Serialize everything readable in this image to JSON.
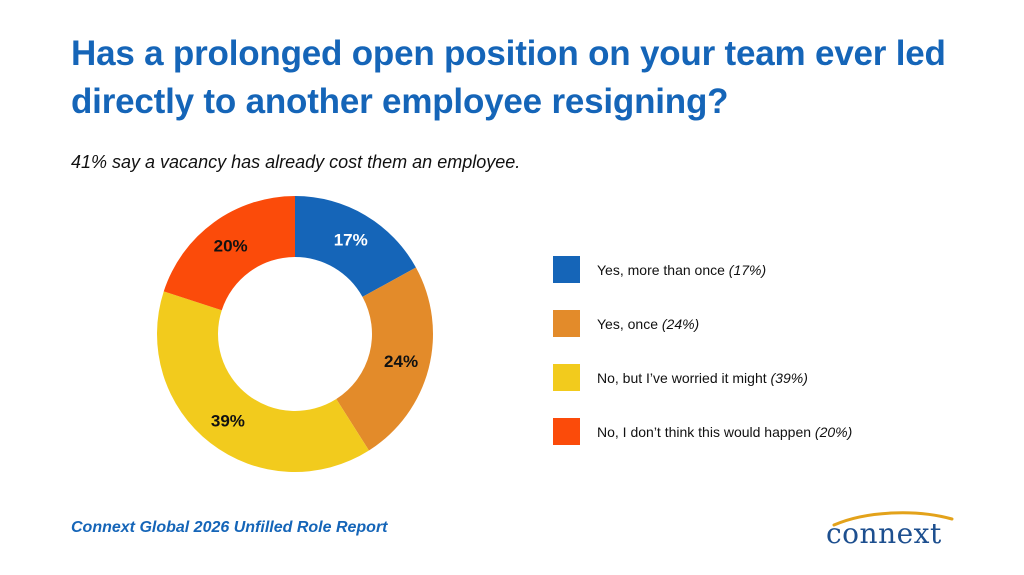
{
  "header": {
    "title": "Has a prolonged open position on your team ever led directly to another employee resigning?",
    "subtitle": "41% say a vacancy has already cost them an employee."
  },
  "chart_data": {
    "type": "pie",
    "donut": true,
    "slices": [
      {
        "name": "Yes, more than once",
        "value": 17,
        "label": "17%",
        "legend_pct": "(17%)",
        "color": "#1565b8",
        "label_color": "#ffffff"
      },
      {
        "name": "Yes, once",
        "value": 24,
        "label": "24%",
        "legend_pct": "(24%)",
        "color": "#e38b2a",
        "label_color": "#111111"
      },
      {
        "name": "No, but I’ve worried it might",
        "value": 39,
        "label": "39%",
        "legend_pct": "(39%)",
        "color": "#f2cb1d",
        "label_color": "#111111"
      },
      {
        "name": "No, I don’t think this would happen",
        "value": 20,
        "label": "20%",
        "legend_pct": "(20%)",
        "color": "#fb4b0a",
        "label_color": "#111111"
      }
    ],
    "legend_position": "right"
  },
  "footer": {
    "source": "Connext Global 2026 Unfilled Role Report"
  },
  "logo": {
    "text": "connext",
    "color": "#1d4f8f",
    "accent_color": "#e3a21a"
  }
}
